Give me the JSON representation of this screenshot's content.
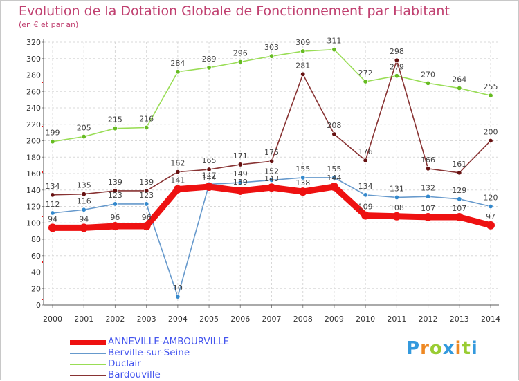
{
  "chart_data": {
    "type": "line",
    "title": "Evolution de la Dotation Globale de Fonctionnement par Habitant",
    "subtitle": "(en € et par an)",
    "categories": [
      "2000",
      "2001",
      "2002",
      "2003",
      "2004",
      "2005",
      "2006",
      "2007",
      "2008",
      "2009",
      "2010",
      "2011",
      "2012",
      "2013",
      "2014"
    ],
    "ylim": [
      0,
      320
    ],
    "yticks": [
      0,
      20,
      40,
      60,
      80,
      100,
      120,
      140,
      160,
      180,
      200,
      220,
      240,
      260,
      280,
      300,
      320
    ],
    "grid": true,
    "series": [
      {
        "name": "Duclair",
        "color": "#99dd55",
        "marker": "#66bb22",
        "values": [
          199,
          205,
          215,
          216,
          284,
          289,
          296,
          303,
          309,
          311,
          272,
          279,
          270,
          264,
          255
        ]
      },
      {
        "name": "Bardouville",
        "color": "#883333",
        "marker": "#661111",
        "values": [
          134,
          135,
          139,
          139,
          162,
          165,
          171,
          175,
          281,
          208,
          176,
          298,
          166,
          161,
          200
        ]
      },
      {
        "name": "Berville-sur-Seine",
        "color": "#6699cc",
        "marker": "#3388cc",
        "values": [
          112,
          116,
          123,
          123,
          10,
          147,
          149,
          152,
          155,
          155,
          134,
          131,
          132,
          129,
          120
        ]
      },
      {
        "name": "ANNEVILLE-AMBOURVILLE",
        "color": "#ee1111",
        "marker": "#ee1111",
        "values": [
          94,
          94,
          96,
          96,
          141,
          144,
          139,
          143,
          138,
          144,
          109,
          108,
          107,
          107,
          97
        ]
      }
    ],
    "legend": [
      "ANNEVILLE-AMBOURVILLE",
      "Berville-sur-Seine",
      "Duclair",
      "Bardouville"
    ]
  },
  "brand": {
    "letters": [
      "P",
      "r",
      "o",
      "x",
      "i",
      "t",
      "i"
    ],
    "colors": [
      "#3399dd",
      "#ee8822",
      "#99cc33",
      "#3399dd",
      "#ee8822",
      "#99cc33",
      "#3399dd"
    ]
  }
}
